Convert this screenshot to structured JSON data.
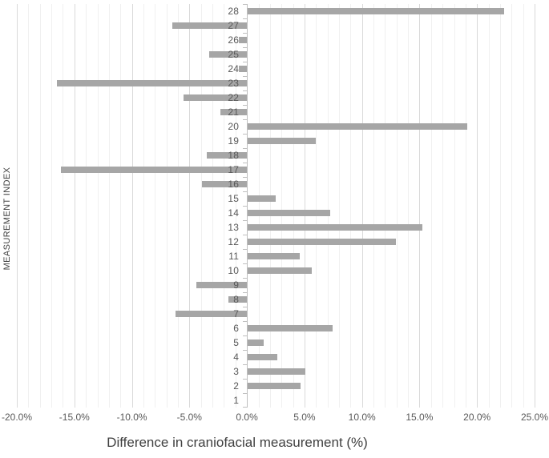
{
  "chart_data": {
    "type": "bar",
    "orientation": "horizontal",
    "title": "",
    "xlabel": "Difference in craniofacial measurement (%)",
    "ylabel": "MEASUREMENT INDEX",
    "categories": [
      "1",
      "2",
      "3",
      "4",
      "5",
      "6",
      "7",
      "8",
      "9",
      "10",
      "11",
      "12",
      "13",
      "14",
      "15",
      "16",
      "17",
      "18",
      "19",
      "20",
      "21",
      "22",
      "23",
      "24",
      "25",
      "26",
      "27",
      "28"
    ],
    "values": [
      0.0,
      4.6,
      5.0,
      2.6,
      1.4,
      7.4,
      -6.2,
      -1.6,
      -4.4,
      5.6,
      4.5,
      12.9,
      15.2,
      7.2,
      2.4,
      -3.9,
      -16.2,
      -3.5,
      5.9,
      19.1,
      -2.3,
      -5.5,
      -16.5,
      -0.7,
      -3.3,
      -0.7,
      -6.5,
      22.3
    ],
    "xlim": [
      -20,
      25
    ],
    "x_major_step": 5,
    "x_minor_step": 1,
    "x_tick_labels": [
      "-20.0%",
      "-15.0%",
      "-10.0%",
      "-5.0%",
      "0.0%",
      "5.0%",
      "10.0%",
      "15.0%",
      "20.0%",
      "25.0%"
    ],
    "grid": true,
    "legend": false
  },
  "colors": {
    "bar": "#A6A6A6",
    "axis_line": "#BFBFBF",
    "tick": "#BFBFBF",
    "grid_major": "#D9D9D9",
    "grid_minor": "#F0F0F0",
    "label": "#595959",
    "title": "#404040"
  }
}
